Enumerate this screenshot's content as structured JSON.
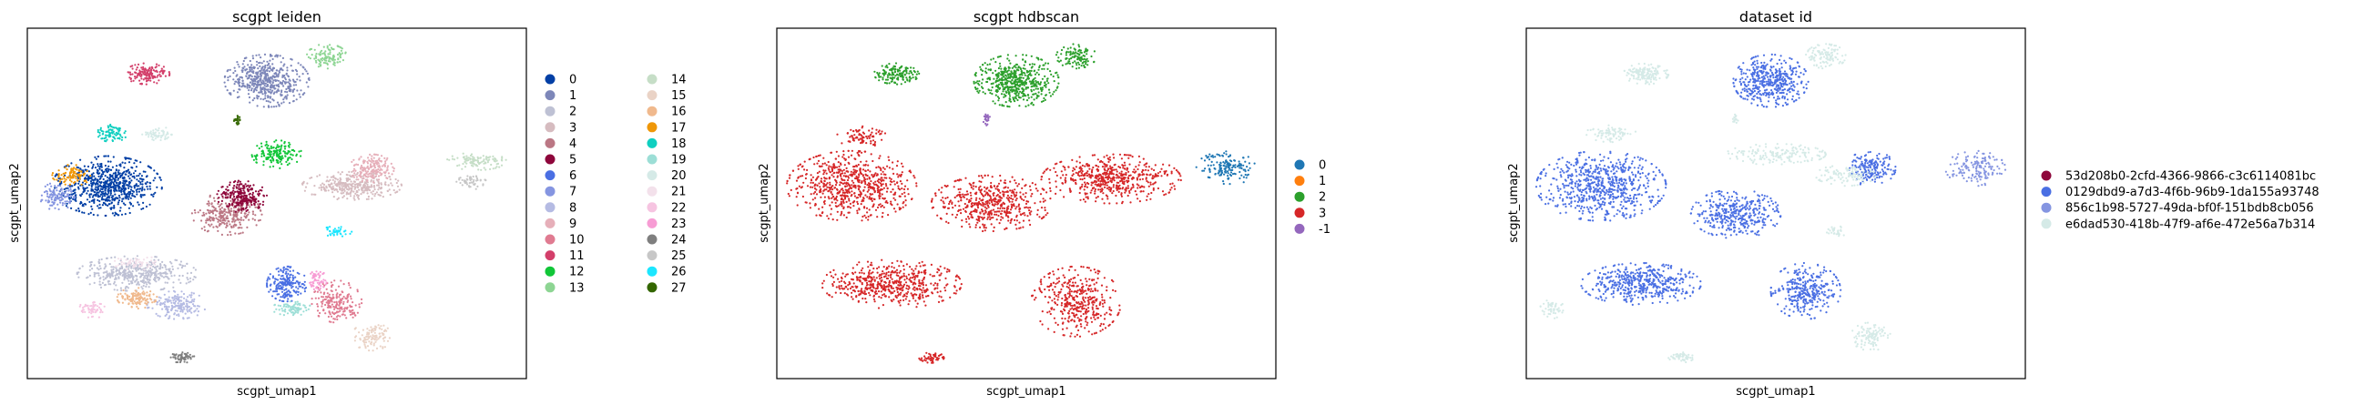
{
  "figure": {
    "title": "",
    "background": "#ffffff"
  },
  "chart_data": [
    {
      "type": "scatter",
      "title": "scgpt leiden",
      "xlabel": "scgpt_umap1",
      "ylabel": "scgpt_umap2",
      "xlim": [
        0,
        1
      ],
      "ylim": [
        0,
        1
      ],
      "grid": false,
      "legend_placement": "right-outside, two columns",
      "legend": [
        {
          "name": "0",
          "color": "#023fa5"
        },
        {
          "name": "1",
          "color": "#7d87b9"
        },
        {
          "name": "2",
          "color": "#bec1d4"
        },
        {
          "name": "3",
          "color": "#d6bcc0"
        },
        {
          "name": "4",
          "color": "#bb7784"
        },
        {
          "name": "5",
          "color": "#8e063b"
        },
        {
          "name": "6",
          "color": "#4a6fe3"
        },
        {
          "name": "7",
          "color": "#8595e1"
        },
        {
          "name": "8",
          "color": "#b5bbe3"
        },
        {
          "name": "9",
          "color": "#e6afb9"
        },
        {
          "name": "10",
          "color": "#e07b91"
        },
        {
          "name": "11",
          "color": "#d33f6a"
        },
        {
          "name": "12",
          "color": "#11c638"
        },
        {
          "name": "13",
          "color": "#8dd593"
        },
        {
          "name": "14",
          "color": "#c6dec7"
        },
        {
          "name": "15",
          "color": "#ead3c6"
        },
        {
          "name": "16",
          "color": "#f0b98d"
        },
        {
          "name": "17",
          "color": "#ef9708"
        },
        {
          "name": "18",
          "color": "#0fcfc0"
        },
        {
          "name": "19",
          "color": "#9cded6"
        },
        {
          "name": "20",
          "color": "#d5eae7"
        },
        {
          "name": "21",
          "color": "#f3e1eb"
        },
        {
          "name": "22",
          "color": "#f6c4e1"
        },
        {
          "name": "23",
          "color": "#f79cd4"
        },
        {
          "name": "24",
          "color": "#7f7f7f"
        },
        {
          "name": "25",
          "color": "#c7c7c7"
        },
        {
          "name": "26",
          "color": "#1ce6ff"
        },
        {
          "name": "27",
          "color": "#336600"
        }
      ],
      "clusters": [
        {
          "label": "0",
          "x": 0.16,
          "y": 0.55,
          "rx": 0.11,
          "ry": 0.085,
          "n": 700
        },
        {
          "label": "1",
          "x": 0.48,
          "y": 0.85,
          "rx": 0.085,
          "ry": 0.075,
          "n": 520
        },
        {
          "label": "2",
          "x": 0.22,
          "y": 0.3,
          "rx": 0.12,
          "ry": 0.05,
          "n": 450
        },
        {
          "label": "3",
          "x": 0.65,
          "y": 0.55,
          "rx": 0.1,
          "ry": 0.04,
          "n": 330
        },
        {
          "label": "4",
          "x": 0.4,
          "y": 0.47,
          "rx": 0.07,
          "ry": 0.06,
          "n": 280
        },
        {
          "label": "5",
          "x": 0.43,
          "y": 0.52,
          "rx": 0.05,
          "ry": 0.045,
          "n": 240
        },
        {
          "label": "6",
          "x": 0.52,
          "y": 0.27,
          "rx": 0.04,
          "ry": 0.05,
          "n": 200
        },
        {
          "label": "7",
          "x": 0.06,
          "y": 0.52,
          "rx": 0.035,
          "ry": 0.04,
          "n": 120
        },
        {
          "label": "8",
          "x": 0.3,
          "y": 0.21,
          "rx": 0.06,
          "ry": 0.04,
          "n": 180
        },
        {
          "label": "9",
          "x": 0.69,
          "y": 0.6,
          "rx": 0.045,
          "ry": 0.04,
          "n": 170
        },
        {
          "label": "10",
          "x": 0.62,
          "y": 0.22,
          "rx": 0.05,
          "ry": 0.06,
          "n": 200
        },
        {
          "label": "11",
          "x": 0.24,
          "y": 0.87,
          "rx": 0.045,
          "ry": 0.03,
          "n": 150
        },
        {
          "label": "12",
          "x": 0.5,
          "y": 0.64,
          "rx": 0.05,
          "ry": 0.04,
          "n": 160
        },
        {
          "label": "13",
          "x": 0.6,
          "y": 0.92,
          "rx": 0.04,
          "ry": 0.035,
          "n": 110
        },
        {
          "label": "14",
          "x": 0.9,
          "y": 0.62,
          "rx": 0.06,
          "ry": 0.025,
          "n": 110
        },
        {
          "label": "15",
          "x": 0.69,
          "y": 0.12,
          "rx": 0.04,
          "ry": 0.04,
          "n": 110
        },
        {
          "label": "16",
          "x": 0.22,
          "y": 0.23,
          "rx": 0.04,
          "ry": 0.03,
          "n": 120
        },
        {
          "label": "17",
          "x": 0.09,
          "y": 0.58,
          "rx": 0.04,
          "ry": 0.03,
          "n": 90
        },
        {
          "label": "18",
          "x": 0.17,
          "y": 0.7,
          "rx": 0.03,
          "ry": 0.025,
          "n": 80
        },
        {
          "label": "19",
          "x": 0.53,
          "y": 0.2,
          "rx": 0.04,
          "ry": 0.02,
          "n": 80
        },
        {
          "label": "20",
          "x": 0.26,
          "y": 0.7,
          "rx": 0.03,
          "ry": 0.02,
          "n": 60
        },
        {
          "label": "21",
          "x": 0.22,
          "y": 0.33,
          "rx": 0.05,
          "ry": 0.02,
          "n": 60
        },
        {
          "label": "22",
          "x": 0.13,
          "y": 0.2,
          "rx": 0.025,
          "ry": 0.03,
          "n": 60
        },
        {
          "label": "23",
          "x": 0.58,
          "y": 0.28,
          "rx": 0.02,
          "ry": 0.03,
          "n": 60
        },
        {
          "label": "24",
          "x": 0.31,
          "y": 0.06,
          "rx": 0.025,
          "ry": 0.015,
          "n": 60
        },
        {
          "label": "25",
          "x": 0.89,
          "y": 0.56,
          "rx": 0.03,
          "ry": 0.02,
          "n": 50
        },
        {
          "label": "26",
          "x": 0.62,
          "y": 0.42,
          "rx": 0.03,
          "ry": 0.015,
          "n": 40
        },
        {
          "label": "27",
          "x": 0.42,
          "y": 0.74,
          "rx": 0.006,
          "ry": 0.015,
          "n": 20
        }
      ]
    },
    {
      "type": "scatter",
      "title": "scgpt hdbscan",
      "xlabel": "scgpt_umap1",
      "ylabel": "scgpt_umap2",
      "xlim": [
        0,
        1
      ],
      "ylim": [
        0,
        1
      ],
      "grid": false,
      "legend_placement": "right-outside",
      "legend": [
        {
          "name": "0",
          "color": "#1f77b4"
        },
        {
          "name": "1",
          "color": "#ff7f0e"
        },
        {
          "name": "2",
          "color": "#2ca02c"
        },
        {
          "name": "3",
          "color": "#d62728"
        },
        {
          "name": "-1",
          "color": "#9467bd"
        }
      ],
      "clusters": [
        {
          "label": "3",
          "x": 0.15,
          "y": 0.55,
          "rx": 0.13,
          "ry": 0.1,
          "n": 700
        },
        {
          "label": "3",
          "x": 0.43,
          "y": 0.5,
          "rx": 0.12,
          "ry": 0.08,
          "n": 500
        },
        {
          "label": "3",
          "x": 0.67,
          "y": 0.57,
          "rx": 0.14,
          "ry": 0.07,
          "n": 550
        },
        {
          "label": "3",
          "x": 0.23,
          "y": 0.27,
          "rx": 0.14,
          "ry": 0.07,
          "n": 550
        },
        {
          "label": "3",
          "x": 0.6,
          "y": 0.22,
          "rx": 0.09,
          "ry": 0.1,
          "n": 400
        },
        {
          "label": "3",
          "x": 0.17,
          "y": 0.69,
          "rx": 0.05,
          "ry": 0.03,
          "n": 80
        },
        {
          "label": "3",
          "x": 0.31,
          "y": 0.06,
          "rx": 0.025,
          "ry": 0.015,
          "n": 50
        },
        {
          "label": "2",
          "x": 0.48,
          "y": 0.85,
          "rx": 0.085,
          "ry": 0.075,
          "n": 520
        },
        {
          "label": "2",
          "x": 0.24,
          "y": 0.87,
          "rx": 0.045,
          "ry": 0.03,
          "n": 150
        },
        {
          "label": "2",
          "x": 0.6,
          "y": 0.92,
          "rx": 0.04,
          "ry": 0.035,
          "n": 110
        },
        {
          "label": "0",
          "x": 0.9,
          "y": 0.6,
          "rx": 0.06,
          "ry": 0.05,
          "n": 160
        },
        {
          "label": "-1",
          "x": 0.42,
          "y": 0.74,
          "rx": 0.008,
          "ry": 0.018,
          "n": 25
        }
      ]
    },
    {
      "type": "scatter",
      "title": "dataset id",
      "xlabel": "scgpt_umap1",
      "ylabel": "scgpt_umap2",
      "xlim": [
        0,
        1
      ],
      "ylim": [
        0,
        1
      ],
      "grid": false,
      "legend_placement": "right-outside",
      "legend": [
        {
          "name": "53d208b0-2cfd-4366-9866-c3c6114081bc",
          "color": "#8e063b"
        },
        {
          "name": "0129dbd9-a7d3-4f6b-96b9-1da155a93748",
          "color": "#4a6fe3"
        },
        {
          "name": "856c1b98-5727-49da-bf0f-151bdb8cb056",
          "color": "#8595e1"
        },
        {
          "name": "e6dad530-418b-47f9-af6e-472e56a7b314",
          "color": "#d5eae7"
        }
      ],
      "clusters": [
        {
          "label": "0129dbd9-a7d3-4f6b-96b9-1da155a93748",
          "x": 0.15,
          "y": 0.55,
          "rx": 0.13,
          "ry": 0.1,
          "n": 700
        },
        {
          "label": "0129dbd9-a7d3-4f6b-96b9-1da155a93748",
          "x": 0.49,
          "y": 0.85,
          "rx": 0.075,
          "ry": 0.075,
          "n": 450
        },
        {
          "label": "0129dbd9-a7d3-4f6b-96b9-1da155a93748",
          "x": 0.42,
          "y": 0.47,
          "rx": 0.09,
          "ry": 0.07,
          "n": 380
        },
        {
          "label": "0129dbd9-a7d3-4f6b-96b9-1da155a93748",
          "x": 0.69,
          "y": 0.6,
          "rx": 0.05,
          "ry": 0.05,
          "n": 180
        },
        {
          "label": "0129dbd9-a7d3-4f6b-96b9-1da155a93748",
          "x": 0.23,
          "y": 0.27,
          "rx": 0.12,
          "ry": 0.06,
          "n": 480
        },
        {
          "label": "0129dbd9-a7d3-4f6b-96b9-1da155a93748",
          "x": 0.56,
          "y": 0.25,
          "rx": 0.07,
          "ry": 0.08,
          "n": 330
        },
        {
          "label": "856c1b98-5727-49da-bf0f-151bdb8cb056",
          "x": 0.9,
          "y": 0.6,
          "rx": 0.06,
          "ry": 0.05,
          "n": 150
        },
        {
          "label": "e6dad530-418b-47f9-af6e-472e56a7b314",
          "x": 0.24,
          "y": 0.87,
          "rx": 0.045,
          "ry": 0.03,
          "n": 150
        },
        {
          "label": "e6dad530-418b-47f9-af6e-472e56a7b314",
          "x": 0.6,
          "y": 0.92,
          "rx": 0.04,
          "ry": 0.035,
          "n": 110
        },
        {
          "label": "e6dad530-418b-47f9-af6e-472e56a7b314",
          "x": 0.17,
          "y": 0.7,
          "rx": 0.05,
          "ry": 0.025,
          "n": 80
        },
        {
          "label": "e6dad530-418b-47f9-af6e-472e56a7b314",
          "x": 0.5,
          "y": 0.64,
          "rx": 0.1,
          "ry": 0.03,
          "n": 160
        },
        {
          "label": "e6dad530-418b-47f9-af6e-472e56a7b314",
          "x": 0.64,
          "y": 0.58,
          "rx": 0.06,
          "ry": 0.03,
          "n": 100
        },
        {
          "label": "e6dad530-418b-47f9-af6e-472e56a7b314",
          "x": 0.69,
          "y": 0.12,
          "rx": 0.04,
          "ry": 0.04,
          "n": 110
        },
        {
          "label": "e6dad530-418b-47f9-af6e-472e56a7b314",
          "x": 0.05,
          "y": 0.2,
          "rx": 0.025,
          "ry": 0.03,
          "n": 50
        },
        {
          "label": "e6dad530-418b-47f9-af6e-472e56a7b314",
          "x": 0.31,
          "y": 0.06,
          "rx": 0.025,
          "ry": 0.015,
          "n": 50
        },
        {
          "label": "e6dad530-418b-47f9-af6e-472e56a7b314",
          "x": 0.62,
          "y": 0.42,
          "rx": 0.03,
          "ry": 0.015,
          "n": 30
        },
        {
          "label": "e6dad530-418b-47f9-af6e-472e56a7b314",
          "x": 0.42,
          "y": 0.74,
          "rx": 0.006,
          "ry": 0.015,
          "n": 15
        }
      ]
    }
  ]
}
